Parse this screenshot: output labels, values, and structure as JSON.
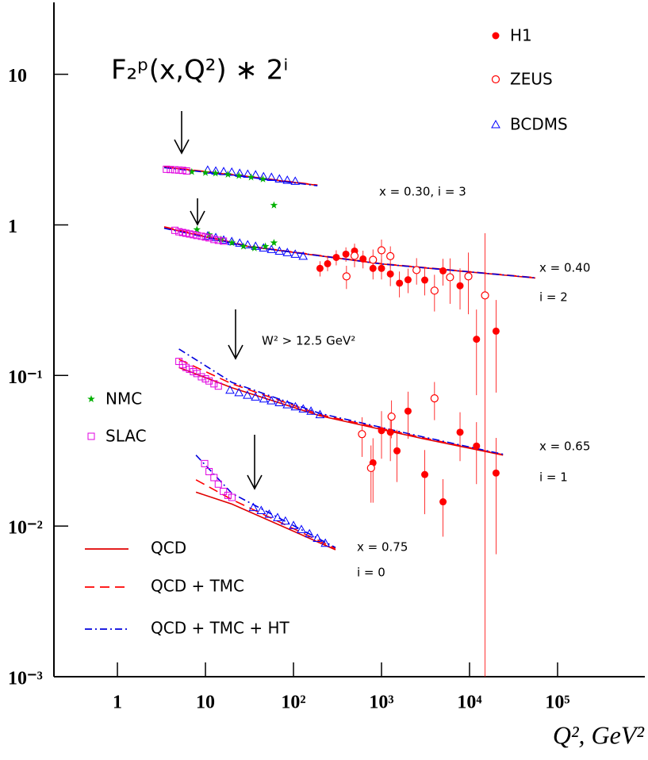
{
  "chart_data": {
    "type": "scatter",
    "title": "F₂ᵖ(x,Q²) ∗ 2ⁱ",
    "x_label": "Q², GeV²",
    "log_x": true,
    "log_y": true,
    "xlim": [
      0.19,
      980000
    ],
    "ylim": [
      0.001,
      30
    ],
    "xticks": [
      1,
      10,
      {
        "value": 100,
        "label": "10²"
      },
      {
        "value": 1000,
        "label": "10³"
      },
      {
        "value": 10000,
        "label": "10⁴"
      },
      {
        "value": 100000,
        "label": "10⁵"
      }
    ],
    "yticks": [
      {
        "value": 0.001,
        "label": "10⁻³"
      },
      {
        "value": 0.01,
        "label": "10⁻²"
      },
      {
        "value": 0.1,
        "label": "10⁻¹"
      },
      1,
      10
    ],
    "series": [
      {
        "name": "H1",
        "color": "#ff0000",
        "marker": "filled-circle",
        "x": [
          200,
          244,
          306,
          394,
          494,
          617,
          800,
          1000,
          1260,
          1600,
          2000,
          3100,
          5000,
          7800,
          12000,
          20000,
          800,
          1000,
          1260,
          1500,
          2000,
          3100,
          5000,
          7800,
          12000,
          20000
        ],
        "values": [
          0.514,
          0.552,
          0.608,
          0.639,
          0.67,
          0.594,
          0.514,
          0.514,
          0.472,
          0.41,
          0.432,
          0.43,
          0.495,
          0.394,
          0.174,
          0.197,
          0.0263,
          0.043,
          0.042,
          0.0316,
          0.058,
          0.022,
          0.0145,
          0.042,
          0.034,
          0.0225
        ],
        "errors": [
          0.06,
          0.06,
          0.07,
          0.07,
          0.08,
          0.08,
          0.08,
          0.08,
          0.08,
          0.08,
          0.08,
          0.09,
          0.1,
          0.12,
          0.1,
          0.12,
          0.012,
          0.015,
          0.015,
          0.012,
          0.02,
          0.01,
          0.006,
          0.015,
          0.015,
          0.016
        ]
      },
      {
        "name": "ZEUS",
        "color": "#ff0000",
        "marker": "open-circle",
        "x": [
          400,
          494,
          800,
          1000,
          1260,
          2500,
          4000,
          6000,
          9700,
          15000,
          600,
          760,
          1300,
          4000
        ],
        "values": [
          0.455,
          0.623,
          0.586,
          0.678,
          0.62,
          0.501,
          0.366,
          0.449,
          0.455,
          0.34,
          0.0408,
          0.0243,
          0.0533,
          0.0705
        ],
        "errors": [
          0.08,
          0.1,
          0.1,
          0.12,
          0.1,
          0.1,
          0.1,
          0.15,
          0.2,
          0.54,
          0.012,
          0.01,
          0.015,
          0.02
        ]
      },
      {
        "name": "BCDMS",
        "color": "#0000ff",
        "marker": "triangle",
        "x": [
          10.6,
          13.1,
          16.1,
          19.9,
          24.5,
          30.2,
          37.1,
          45.7,
          56.2,
          69.2,
          85.1,
          104.7,
          10.6,
          13.1,
          16.1,
          19.9,
          24.5,
          30.2,
          37.1,
          45.7,
          56.2,
          69.2,
          85.1,
          104.7,
          128.8,
          19,
          24,
          30,
          37,
          46,
          56,
          69,
          85,
          105,
          129,
          158,
          200,
          35,
          43,
          53,
          66,
          81,
          100,
          123,
          152,
          187,
          230
        ],
        "values": [
          2.31,
          2.28,
          2.26,
          2.24,
          2.2,
          2.17,
          2.15,
          2.09,
          2.07,
          2.02,
          1.98,
          1.95,
          0.845,
          0.824,
          0.794,
          0.776,
          0.757,
          0.738,
          0.721,
          0.703,
          0.687,
          0.67,
          0.655,
          0.639,
          0.62,
          0.08,
          0.077,
          0.074,
          0.072,
          0.07,
          0.068,
          0.066,
          0.064,
          0.062,
          0.06,
          0.058,
          0.055,
          0.0133,
          0.0127,
          0.012,
          0.0114,
          0.0108,
          0.0101,
          0.0095,
          0.0089,
          0.0083,
          0.0077
        ]
      },
      {
        "name": "NMC",
        "color": "#00b000",
        "marker": "star",
        "x": [
          7,
          10,
          13,
          18,
          24,
          33,
          45,
          60,
          8,
          11,
          15,
          20,
          27,
          36,
          48,
          60
        ],
        "values": [
          2.25,
          2.22,
          2.2,
          2.16,
          2.12,
          2.07,
          2.01,
          1.35,
          0.93,
          0.86,
          0.8,
          0.76,
          0.72,
          0.7,
          0.72,
          0.76
        ]
      },
      {
        "name": "SLAC",
        "color": "#e000e0",
        "marker": "square",
        "x": [
          3.6,
          4,
          4.5,
          5,
          5.5,
          6.1,
          4.5,
          5,
          5.5,
          6,
          6.6,
          7.3,
          8,
          9,
          10,
          11,
          12.5,
          14,
          16,
          5,
          5.5,
          6,
          6.6,
          7.3,
          8,
          9,
          10,
          11,
          12.5,
          14,
          9.8,
          11,
          12.5,
          14,
          16,
          18,
          20
        ],
        "values": [
          2.34,
          2.33,
          2.32,
          2.31,
          2.3,
          2.28,
          0.92,
          0.9,
          0.89,
          0.88,
          0.87,
          0.86,
          0.85,
          0.84,
          0.83,
          0.82,
          0.8,
          0.79,
          0.78,
          0.124,
          0.118,
          0.113,
          0.11,
          0.106,
          0.103,
          0.098,
          0.095,
          0.092,
          0.088,
          0.085,
          0.026,
          0.023,
          0.021,
          0.019,
          0.017,
          0.016,
          0.0155
        ]
      }
    ],
    "fits": [
      {
        "name": "QCD",
        "color": "#e00000",
        "dash": "solid",
        "curves": [
          {
            "x": [
              3.4,
              20,
              187
            ],
            "values": [
              2.42,
              2.15,
              1.83
            ]
          },
          {
            "x": [
              3.4,
              30,
              1000,
              56000
            ],
            "values": [
              0.96,
              0.72,
              0.55,
              0.444
            ]
          },
          {
            "x": [
              5,
              20,
              200,
              3000,
              24000
            ],
            "values": [
              0.113,
              0.083,
              0.054,
              0.038,
              0.0296
            ]
          },
          {
            "x": [
              7.8,
              20,
              300
            ],
            "values": [
              0.0168,
              0.014,
              0.00696
            ]
          }
        ]
      },
      {
        "name": "QCD + TMC",
        "color": "#ff0000",
        "dash": "dashed",
        "curves": [
          {
            "x": [
              3.4,
              20,
              187
            ],
            "values": [
              2.43,
              2.16,
              1.84
            ]
          },
          {
            "x": [
              3.4,
              30,
              1000,
              56000
            ],
            "values": [
              0.97,
              0.725,
              0.553,
              0.446
            ]
          },
          {
            "x": [
              5,
              20,
              200,
              3000,
              24000
            ],
            "values": [
              0.128,
              0.088,
              0.055,
              0.0385,
              0.0298
            ]
          },
          {
            "x": [
              7.8,
              20,
              300
            ],
            "values": [
              0.0203,
              0.015,
              0.0071
            ]
          }
        ]
      },
      {
        "name": "QCD + TMC + HT",
        "color": "#0000dd",
        "dash": "dashdot",
        "curves": [
          {
            "x": [
              3.4,
              20,
              187
            ],
            "values": [
              2.4,
              2.14,
              1.82
            ]
          },
          {
            "x": [
              3.4,
              30,
              1000,
              56000
            ],
            "values": [
              0.95,
              0.72,
              0.55,
              0.445
            ]
          },
          {
            "x": [
              5,
              20,
              200,
              3000,
              24000
            ],
            "values": [
              0.15,
              0.09,
              0.056,
              0.039,
              0.03
            ]
          },
          {
            "x": [
              7.8,
              20,
              300
            ],
            "values": [
              0.0296,
              0.0165,
              0.0072
            ]
          }
        ]
      }
    ],
    "annotations": [
      "x = 0.30, i = 3",
      "x = 0.40",
      "i = 2",
      "W² > 12.5 GeV²",
      "x = 0.65",
      "i = 1",
      "x = 0.75",
      "i = 0"
    ]
  }
}
